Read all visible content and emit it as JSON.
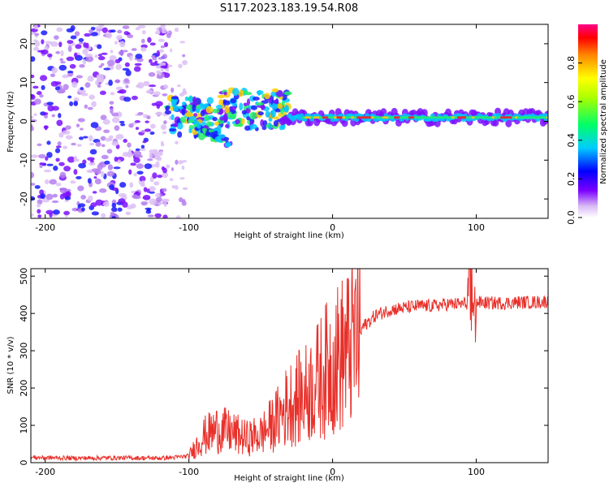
{
  "title": "S117.2023.183.19.54.R08",
  "chart_data": [
    {
      "type": "heatmap",
      "name": "spectrogram",
      "xlabel": "Height of straight line (km)",
      "ylabel": "Frequency (Hz)",
      "xlim": [
        -210,
        150
      ],
      "ylim": [
        -25,
        25
      ],
      "xticks": [
        -200,
        -100,
        0,
        100
      ],
      "xtick_labels": [
        "-200",
        "-100",
        "0",
        "100"
      ],
      "yticks": [
        -20,
        -10,
        0,
        10,
        20
      ],
      "ytick_labels": [
        "-20",
        "-10",
        "0",
        "10",
        "20"
      ],
      "colorbar": {
        "label": "Normalized spectral amplitude",
        "range": [
          0,
          1
        ],
        "ticks": [
          0.0,
          0.2,
          0.4,
          0.6,
          0.8
        ],
        "tick_labels": [
          "0.0",
          "0.2",
          "0.4",
          "0.6",
          "0.8"
        ]
      },
      "features": [
        {
          "region": "noise",
          "x_range": [
            -210,
            -115
          ],
          "freq_range": [
            -25,
            25
          ],
          "amplitude": 0.3
        },
        {
          "region": "signal onset",
          "x_range": [
            -115,
            -25
          ],
          "freq_range": [
            -6,
            10
          ],
          "amplitude": 0.6
        },
        {
          "region": "carrier line",
          "x_range": [
            -30,
            150
          ],
          "freq": 1,
          "amplitude": 0.9
        }
      ]
    },
    {
      "type": "line",
      "name": "snr",
      "xlabel": "Height of straight line (km)",
      "ylabel": "SNR (10 * v/v)",
      "xlim": [
        -210,
        150
      ],
      "ylim": [
        0,
        520
      ],
      "xticks": [
        -200,
        -100,
        0,
        100
      ],
      "xtick_labels": [
        "-200",
        "-100",
        "0",
        "100"
      ],
      "yticks": [
        0,
        100,
        200,
        300,
        400,
        500
      ],
      "ytick_labels": [
        "0",
        "100",
        "200",
        "300",
        "400",
        "500"
      ],
      "color": "#e8302a",
      "series": [
        {
          "name": "SNR",
          "x": [
            -210,
            -180,
            -150,
            -120,
            -110,
            -100,
            -90,
            -80,
            -70,
            -60,
            -50,
            -40,
            -30,
            -20,
            -10,
            0,
            10,
            20,
            30,
            40,
            50,
            60,
            70,
            80,
            90,
            97,
            110,
            120,
            130,
            140,
            150
          ],
          "values": [
            14,
            12,
            13,
            12,
            14,
            18,
            70,
            90,
            80,
            65,
            75,
            110,
            160,
            180,
            220,
            270,
            300,
            360,
            395,
            410,
            415,
            420,
            420,
            425,
            425,
            430,
            428,
            428,
            430,
            430,
            432
          ]
        }
      ]
    }
  ]
}
